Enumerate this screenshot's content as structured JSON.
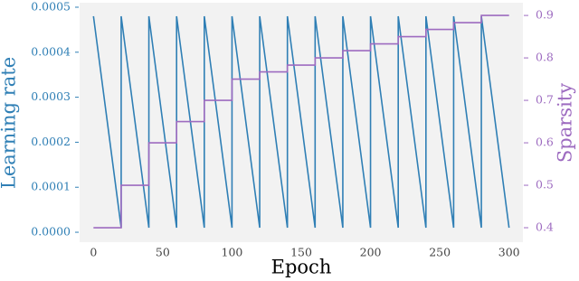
{
  "chart_data": {
    "type": "line",
    "xlabel": "Epoch",
    "ylabel": "Learning rate",
    "y2label": "Sparsity",
    "x": [
      0,
      20,
      20,
      40,
      40,
      60,
      60,
      80,
      80,
      100,
      100,
      120,
      120,
      140,
      140,
      160,
      160,
      180,
      180,
      200,
      200,
      220,
      220,
      240,
      240,
      260,
      260,
      280,
      280,
      300
    ],
    "series": [
      {
        "name": "Learning rate",
        "color": "#2f7fb5",
        "axis": "y",
        "values": [
          0.00048,
          1e-05,
          0.00048,
          1e-05,
          0.00048,
          1e-05,
          0.00048,
          1e-05,
          0.00048,
          1e-05,
          0.00048,
          1e-05,
          0.00048,
          1e-05,
          0.00048,
          1e-05,
          0.00048,
          1e-05,
          0.00048,
          1e-05,
          0.00048,
          1e-05,
          0.00048,
          1e-05,
          0.00048,
          1e-05,
          0.00048,
          1e-05,
          0.00048,
          1e-05
        ]
      },
      {
        "name": "Sparsity",
        "color": "#9d6bc0",
        "axis": "y2",
        "values": [
          0.4,
          0.4,
          0.5,
          0.5,
          0.6,
          0.6,
          0.65,
          0.65,
          0.7,
          0.7,
          0.75,
          0.75,
          0.767,
          0.767,
          0.783,
          0.783,
          0.8,
          0.8,
          0.817,
          0.817,
          0.833,
          0.833,
          0.85,
          0.85,
          0.867,
          0.867,
          0.883,
          0.883,
          0.9,
          0.9
        ]
      }
    ],
    "xlim": [
      -10,
      310
    ],
    "xticks": [
      0,
      50,
      100,
      150,
      200,
      250,
      300
    ],
    "ylim": [
      -2.2e-05,
      0.00051
    ],
    "yticks": [
      {
        "value": 0,
        "label": "0.0000"
      },
      {
        "value": 0.0001,
        "label": "0.0001"
      },
      {
        "value": 0.0002,
        "label": "0.0002"
      },
      {
        "value": 0.0003,
        "label": "0.0003"
      },
      {
        "value": 0.0004,
        "label": "0.0004"
      },
      {
        "value": 0.0005,
        "label": "0.0005"
      }
    ],
    "y2lim": [
      0.366,
      0.93
    ],
    "y2ticks": [
      0.4,
      0.5,
      0.6,
      0.7,
      0.8,
      0.9
    ],
    "background": "#f2f2f2"
  }
}
